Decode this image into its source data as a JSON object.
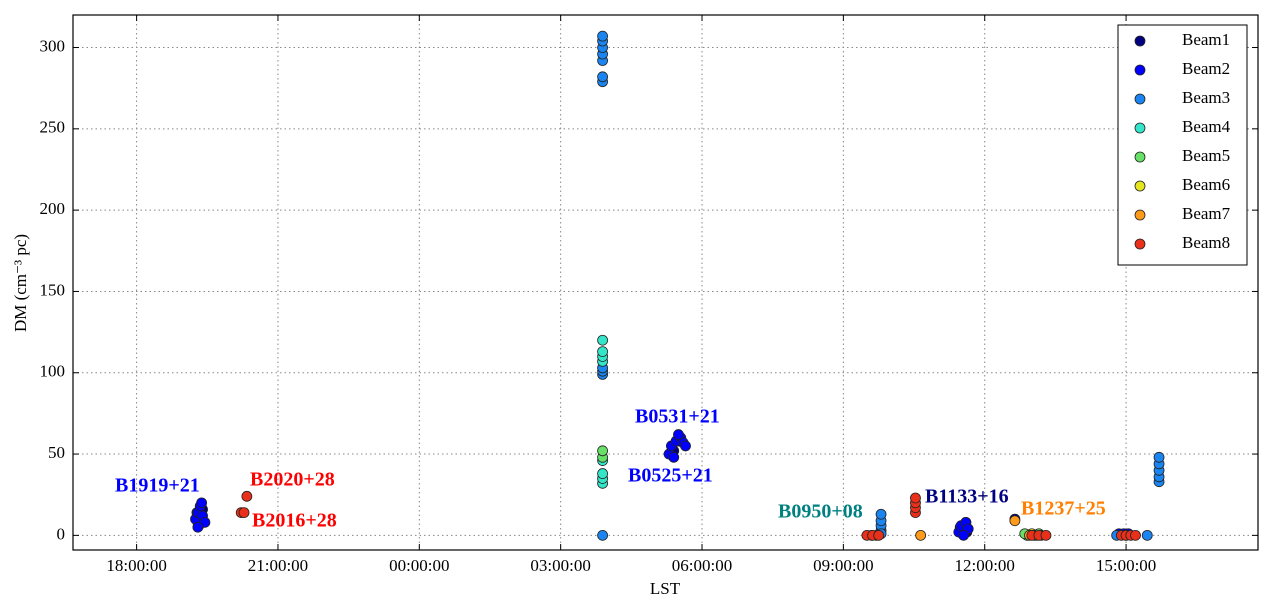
{
  "chart_data": {
    "type": "scatter",
    "xlabel": "LST",
    "ylabel": "DM (cm⁻³ pc)",
    "xlim": [
      16.65,
      41.8
    ],
    "ylim": [
      -9,
      320
    ],
    "xticks": [
      {
        "value": 18,
        "label": "18:00:00"
      },
      {
        "value": 21,
        "label": "21:00:00"
      },
      {
        "value": 24,
        "label": "00:00:00"
      },
      {
        "value": 27,
        "label": "03:00:00"
      },
      {
        "value": 30,
        "label": "06:00:00"
      },
      {
        "value": 33,
        "label": "09:00:00"
      },
      {
        "value": 36,
        "label": "12:00:00"
      },
      {
        "value": 39,
        "label": "15:00:00"
      }
    ],
    "yticks": [
      0,
      50,
      100,
      150,
      200,
      250,
      300
    ],
    "grid": true,
    "legend": "upper right",
    "series": [
      {
        "name": "Beam1",
        "color": "#000080",
        "x": [
          19.3,
          19.35,
          19.4,
          19.28,
          19.38,
          19.32,
          35.5,
          35.55,
          35.6,
          35.48,
          35.62,
          29.4,
          29.5,
          36.64
        ],
        "y": [
          8,
          12,
          16,
          14,
          10,
          6,
          3,
          6,
          8,
          5,
          2,
          52,
          58,
          10
        ]
      },
      {
        "name": "Beam2",
        "color": "#0000ff",
        "x": [
          19.25,
          19.3,
          19.35,
          19.4,
          19.45,
          19.3,
          19.38,
          29.3,
          29.35,
          29.45,
          29.55,
          29.6,
          29.4,
          29.5,
          29.65,
          35.45,
          35.5,
          35.6,
          35.65,
          35.55,
          38.85,
          38.95,
          39.05
        ],
        "y": [
          10,
          14,
          18,
          12,
          8,
          5,
          20,
          50,
          55,
          58,
          60,
          57,
          48,
          62,
          55,
          2,
          6,
          8,
          4,
          0,
          1,
          1,
          1
        ]
      },
      {
        "name": "Beam3",
        "color": "#1a84f0",
        "x": [
          27.89,
          27.89,
          27.89,
          27.89,
          27.89,
          27.89,
          27.89,
          27.89,
          27.89,
          27.89,
          27.89,
          33.8,
          33.8,
          33.8,
          33.8,
          33.8,
          39.7,
          39.7,
          39.7,
          39.7,
          39.7,
          39.45,
          33.6,
          33.7,
          38.8,
          39.0
        ],
        "y": [
          279,
          282,
          292,
          296,
          300,
          304,
          307,
          99,
          101,
          103,
          0,
          3,
          6,
          9,
          13,
          1,
          33,
          36,
          40,
          44,
          48,
          0,
          0,
          0,
          0,
          0
        ]
      },
      {
        "name": "Beam4",
        "color": "#33e6c9",
        "x": [
          27.89,
          27.89,
          27.89,
          27.89,
          27.89,
          27.89,
          27.89,
          27.89,
          36.9,
          37.1
        ],
        "y": [
          32,
          35,
          38,
          46,
          107,
          110,
          113,
          120,
          0,
          0
        ]
      },
      {
        "name": "Beam5",
        "color": "#66e066",
        "x": [
          27.89,
          27.89,
          36.85,
          37.15
        ],
        "y": [
          48,
          52,
          1,
          1
        ]
      },
      {
        "name": "Beam6",
        "color": "#e6e620",
        "x": [
          37.0
        ],
        "y": [
          1
        ]
      },
      {
        "name": "Beam7",
        "color": "#ff9a1a",
        "x": [
          34.64,
          36.64,
          36.95,
          37.05,
          37.2
        ],
        "y": [
          0,
          9,
          0,
          0,
          0
        ]
      },
      {
        "name": "Beam8",
        "color": "#e8301a",
        "x": [
          20.34,
          20.22,
          20.28,
          34.53,
          34.53,
          34.53,
          34.53,
          33.5,
          33.62,
          33.75,
          37.0,
          37.15,
          37.3,
          38.9,
          39.0,
          39.1,
          39.2
        ],
        "y": [
          24,
          14,
          14,
          14,
          17,
          20,
          23,
          0,
          0,
          0,
          0,
          0,
          0,
          0,
          0,
          0,
          0
        ]
      }
    ],
    "annotations": [
      {
        "text": "B1919+21",
        "color": "#0000ff"
      },
      {
        "text": "B2020+28",
        "color": "#ff0000"
      },
      {
        "text": "B2016+28",
        "color": "#ff0000"
      },
      {
        "text": "B0531+21",
        "color": "#0000ff"
      },
      {
        "text": "B0525+21",
        "color": "#0000ff"
      },
      {
        "text": "B0950+08",
        "color": "#008080"
      },
      {
        "text": "B1133+16",
        "color": "#000080"
      },
      {
        "text": "B1237+25",
        "color": "#ff7f00"
      }
    ]
  }
}
